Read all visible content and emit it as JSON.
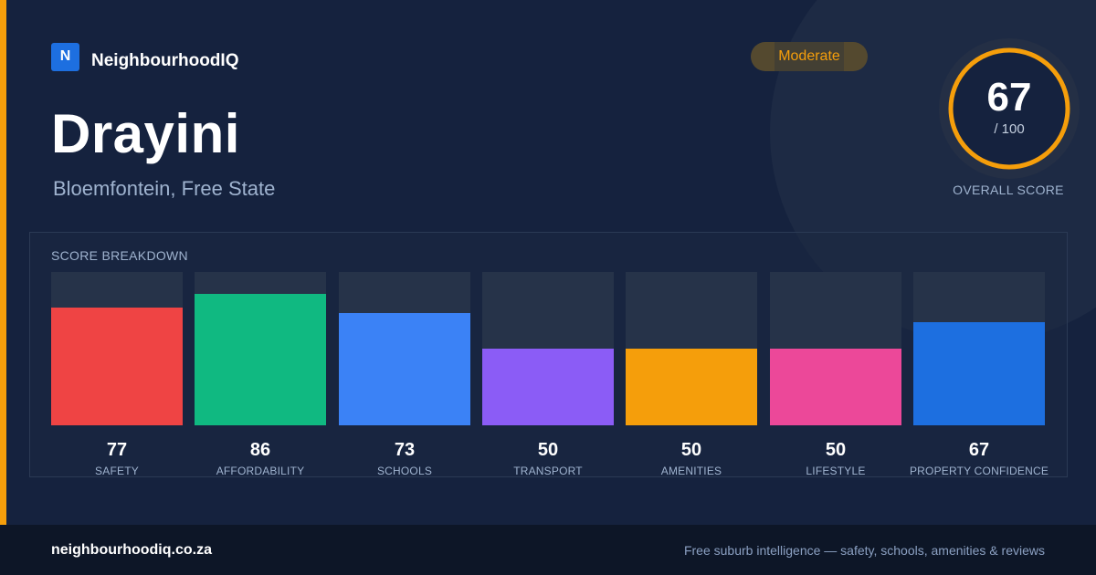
{
  "brand": {
    "logo_letter": "N",
    "name": "NeighbourhoodIQ"
  },
  "suburb": {
    "name": "Drayini",
    "location": "Bloemfontein, Free State"
  },
  "rating_badge": {
    "label": "Moderate",
    "color": "#f59e0b"
  },
  "overall": {
    "score": "67",
    "max_label": "/ 100",
    "caption": "OVERALL SCORE",
    "fraction": 0.67
  },
  "breakdown": {
    "title": "SCORE BREAKDOWN",
    "items": [
      {
        "value": "77",
        "label": "SAFETY",
        "score": 77,
        "color": "#ef4444"
      },
      {
        "value": "86",
        "label": "AFFORDABILITY",
        "score": 86,
        "color": "#10b981"
      },
      {
        "value": "73",
        "label": "SCHOOLS",
        "score": 73,
        "color": "#3b82f6"
      },
      {
        "value": "50",
        "label": "TRANSPORT",
        "score": 50,
        "color": "#8b5cf6"
      },
      {
        "value": "50",
        "label": "AMENITIES",
        "score": 50,
        "color": "#f59e0b"
      },
      {
        "value": "50",
        "label": "LIFESTYLE",
        "score": 50,
        "color": "#ec4899"
      },
      {
        "value": "67",
        "label": "PROPERTY CONFIDENCE",
        "score": 67,
        "color": "#1d6fe0"
      }
    ]
  },
  "footer": {
    "domain": "neighbourhoodiq.co.za",
    "tagline": "Free suburb intelligence — safety, schools, amenities & reviews"
  },
  "colors": {
    "accent": "#f59e0b",
    "background": "#15223e",
    "footer": "#0d1627"
  }
}
